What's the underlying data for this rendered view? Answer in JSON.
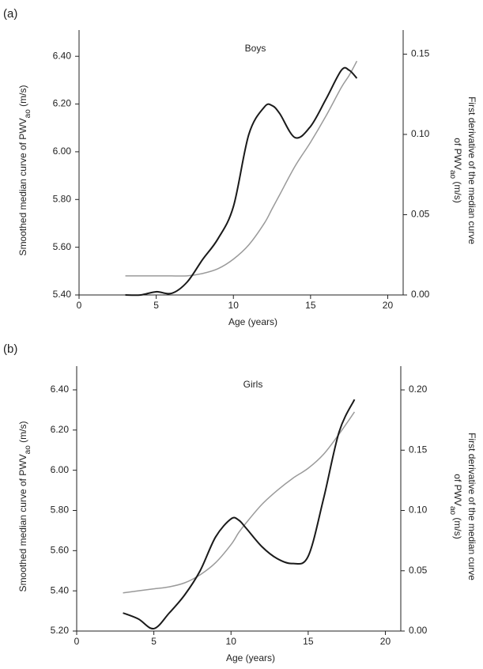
{
  "chart_data": [
    {
      "type": "line",
      "panel": "(a)",
      "title": "Boys",
      "xlabel": "Age (years)",
      "ylabel": [
        "Smoothed median curve of PWV",
        "ao",
        " (m/s)"
      ],
      "y2label": [
        [
          "First derivative of the median curve"
        ],
        [
          "of PWV",
          "ao",
          " (m/s)"
        ]
      ],
      "x": [
        3,
        4,
        5,
        6,
        7,
        8,
        9,
        10,
        11,
        12,
        12.5,
        13,
        14,
        15,
        16,
        17,
        17.5,
        18
      ],
      "series": [
        {
          "color": "#9a9a9a",
          "values": [
            5.48,
            5.48,
            5.48,
            5.48,
            5.48,
            5.49,
            5.51,
            5.55,
            5.61,
            5.7,
            5.76,
            5.82,
            5.94,
            6.04,
            6.15,
            6.27,
            6.32,
            6.38
          ]
        },
        {
          "color": "#1a1a1a",
          "axis": "y2",
          "values": [
            0.0,
            0.0,
            0.002,
            0.001,
            0.008,
            0.022,
            0.035,
            0.055,
            0.1,
            0.117,
            0.118,
            0.113,
            0.098,
            0.105,
            0.122,
            0.14,
            0.14,
            0.135
          ]
        }
      ],
      "xlim": [
        0,
        21
      ],
      "xticks": [
        0,
        5,
        10,
        15,
        20
      ],
      "ylim": [
        5.4,
        6.51
      ],
      "yticks": [
        {
          "value": 5.4,
          "label": "5.40"
        },
        {
          "value": 5.6,
          "label": "5.60"
        },
        {
          "value": 5.8,
          "label": "5.80"
        },
        {
          "value": 6.0,
          "label": "6.00"
        },
        {
          "value": 6.2,
          "label": "6.20"
        },
        {
          "value": 6.4,
          "label": "6.40"
        }
      ],
      "y2lim": [
        0,
        0.165
      ],
      "y2ticks": [
        {
          "value": 0,
          "label": "0.00"
        },
        {
          "value": 0.05,
          "label": "0.05"
        },
        {
          "value": 0.1,
          "label": "0.10"
        },
        {
          "value": 0.15,
          "label": "0.15"
        }
      ]
    },
    {
      "type": "line",
      "panel": "(b)",
      "title": "Girls",
      "xlabel": "Age (years)",
      "ylabel": [
        "Smoothed median curve of PWV",
        "ao",
        " (m/s)"
      ],
      "y2label": [
        [
          "First derivative of the median curve"
        ],
        [
          "of PWV",
          "ao",
          " (m/s)"
        ]
      ],
      "x": [
        3,
        4,
        5,
        6,
        7,
        8,
        9,
        10,
        10.5,
        11,
        12,
        13,
        14,
        15,
        16,
        17,
        18
      ],
      "series": [
        {
          "color": "#9a9a9a",
          "values": [
            5.39,
            5.4,
            5.41,
            5.42,
            5.44,
            5.48,
            5.54,
            5.63,
            5.69,
            5.74,
            5.83,
            5.9,
            5.96,
            6.01,
            6.08,
            6.18,
            6.29
          ]
        },
        {
          "color": "#1a1a1a",
          "axis": "y2",
          "values": [
            0.015,
            0.01,
            0.002,
            0.015,
            0.03,
            0.05,
            0.078,
            0.093,
            0.092,
            0.085,
            0.07,
            0.06,
            0.056,
            0.062,
            0.11,
            0.165,
            0.192
          ]
        }
      ],
      "xlim": [
        0,
        21
      ],
      "xticks": [
        0,
        5,
        10,
        15,
        20
      ],
      "ylim": [
        5.2,
        6.518
      ],
      "yticks": [
        {
          "value": 5.2,
          "label": "5.20"
        },
        {
          "value": 5.4,
          "label": "5.40"
        },
        {
          "value": 5.6,
          "label": "5.60"
        },
        {
          "value": 5.8,
          "label": "5.80"
        },
        {
          "value": 6.0,
          "label": "6.00"
        },
        {
          "value": 6.2,
          "label": "6.20"
        },
        {
          "value": 6.4,
          "label": "6.40"
        }
      ],
      "y2lim": [
        0,
        0.2197
      ],
      "y2ticks": [
        {
          "value": 0,
          "label": "0.00"
        },
        {
          "value": 0.05,
          "label": "0.05"
        },
        {
          "value": 0.1,
          "label": "0.10"
        },
        {
          "value": 0.15,
          "label": "0.15"
        },
        {
          "value": 0.2,
          "label": "0.20"
        }
      ]
    }
  ]
}
